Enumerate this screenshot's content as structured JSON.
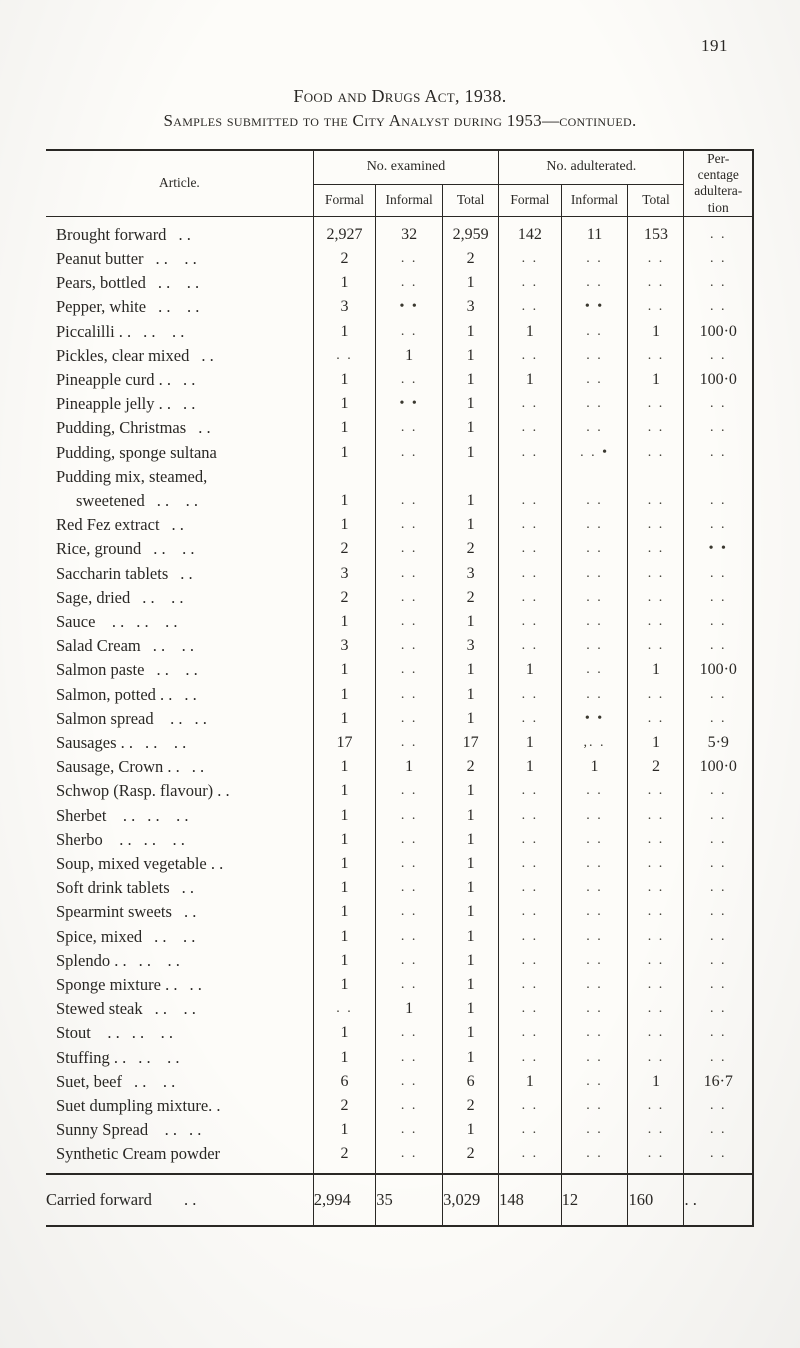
{
  "page_number": "191",
  "heading_main": "Food and Drugs Act, 1938.",
  "heading_sub": "Samples submitted to the City Analyst during 1953—continued.",
  "col_headers": {
    "article": "Article.",
    "examined": "No. examined",
    "adulterated": "No. adulterated.",
    "formal": "Formal",
    "informal": "Informal",
    "total": "Total",
    "pct": "Per-\ncentage\nadultera-\ntion"
  },
  "dot": ". .",
  "bullet": "• •",
  "asterdots": ". . •",
  "commadot": ",. .",
  "rows": [
    {
      "a": "Brought forward",
      "lead": ". .",
      "f": "2,927",
      "i": "32",
      "t": "2,959",
      "af": "142",
      "ai": "11",
      "at": "153",
      "p": ". ."
    },
    {
      "a": "Peanut butter",
      "lead": ". . . .",
      "f": "2",
      "i": ". .",
      "t": "2",
      "af": ". .",
      "ai": ". .",
      "at": ". .",
      "p": ". ."
    },
    {
      "a": "Pears, bottled",
      "lead": ". . . .",
      "f": "1",
      "i": ". .",
      "t": "1",
      "af": ". .",
      "ai": ". .",
      "at": ". .",
      "p": ". ."
    },
    {
      "a": "Pepper, white",
      "lead": ". . . .",
      "f": "3",
      "i": "• •",
      "t": "3",
      "af": ". .",
      "ai": "• •",
      "at": ". .",
      "p": ". ."
    },
    {
      "a": "Piccalilli . .",
      "lead": ". . . .",
      "f": "1",
      "i": ". .",
      "t": "1",
      "af": "1",
      "ai": ". .",
      "at": "1",
      "p": "100·0"
    },
    {
      "a": "Pickles, clear mixed",
      "lead": ". .",
      "f": ". .",
      "i": "1",
      "t": "1",
      "af": ". .",
      "ai": ". .",
      "at": ". .",
      "p": ". ."
    },
    {
      "a": "Pineapple curd . .",
      "lead": ". .",
      "f": "1",
      "i": ". .",
      "t": "1",
      "af": "1",
      "ai": ". .",
      "at": "1",
      "p": "100·0"
    },
    {
      "a": "Pineapple jelly . .",
      "lead": ". .",
      "f": "1",
      "i": "• •",
      "t": "1",
      "af": ". .",
      "ai": ". .",
      "at": ". .",
      "p": ". ."
    },
    {
      "a": "Pudding, Christmas",
      "lead": ". .",
      "f": "1",
      "i": ". .",
      "t": "1",
      "af": ". .",
      "ai": ". .",
      "at": ". .",
      "p": ". ."
    },
    {
      "a": "Pudding, sponge sultana",
      "lead": "",
      "f": "1",
      "i": ". .",
      "t": "1",
      "af": ". .",
      "ai": ". . •",
      "at": ". .",
      "p": ". ."
    },
    {
      "a": "Pudding mix, steamed,",
      "lead": "",
      "f": "",
      "i": "",
      "t": "",
      "af": "",
      "ai": "",
      "at": "",
      "p": ""
    },
    {
      "a": "sweetened",
      "lead": ". . . .",
      "f": "1",
      "i": ". .",
      "t": "1",
      "af": ". .",
      "ai": ". .",
      "at": ". .",
      "p": ". .",
      "indent": true
    },
    {
      "a": "Red Fez extract",
      "lead": ". .",
      "f": "1",
      "i": ". .",
      "t": "1",
      "af": ". .",
      "ai": ". .",
      "at": ". .",
      "p": ". ."
    },
    {
      "a": "Rice, ground",
      "lead": ". . . .",
      "f": "2",
      "i": ". .",
      "t": "2",
      "af": ". .",
      "ai": ". .",
      "at": ". .",
      "p": "• •"
    },
    {
      "a": "Saccharin tablets",
      "lead": ". .",
      "f": "3",
      "i": ". .",
      "t": "3",
      "af": ". .",
      "ai": ". .",
      "at": ". .",
      "p": ". ."
    },
    {
      "a": "Sage, dried",
      "lead": ". . . .",
      "f": "2",
      "i": ". .",
      "t": "2",
      "af": ". .",
      "ai": ". .",
      "at": ". .",
      "p": ". ."
    },
    {
      "a": "Sauce . .",
      "lead": ". . . .",
      "f": "1",
      "i": ". .",
      "t": "1",
      "af": ". .",
      "ai": ". .",
      "at": ". .",
      "p": ". ."
    },
    {
      "a": "Salad Cream",
      "lead": ". . . .",
      "f": "3",
      "i": ". .",
      "t": "3",
      "af": ". .",
      "ai": ". .",
      "at": ". .",
      "p": ". ."
    },
    {
      "a": "Salmon paste",
      "lead": ". . . .",
      "f": "1",
      "i": ". .",
      "t": "1",
      "af": "1",
      "ai": ". .",
      "at": "1",
      "p": "100·0"
    },
    {
      "a": "Salmon, potted . .",
      "lead": ". .",
      "f": "1",
      "i": ". .",
      "t": "1",
      "af": ". .",
      "ai": ". .",
      "at": ". .",
      "p": ". ."
    },
    {
      "a": "Salmon spread . .",
      "lead": ". .",
      "f": "1",
      "i": ". .",
      "t": "1",
      "af": ". .",
      "ai": "• •",
      "at": ". .",
      "p": ". ."
    },
    {
      "a": "Sausages . .",
      "lead": ". . . .",
      "f": "17",
      "i": ". .",
      "t": "17",
      "af": "1",
      "ai": ",. .",
      "at": "1",
      "p": "5·9"
    },
    {
      "a": "Sausage, Crown . .",
      "lead": ". .",
      "f": "1",
      "i": "1",
      "t": "2",
      "af": "1",
      "ai": "1",
      "at": "2",
      "p": "100·0"
    },
    {
      "a": "Schwop (Rasp. flavour) . .",
      "lead": "",
      "f": "1",
      "i": ". .",
      "t": "1",
      "af": ". .",
      "ai": ". .",
      "at": ". .",
      "p": ". ."
    },
    {
      "a": "Sherbet . .",
      "lead": ". . . .",
      "f": "1",
      "i": ". .",
      "t": "1",
      "af": ". .",
      "ai": ". .",
      "at": ". .",
      "p": ". ."
    },
    {
      "a": "Sherbo . .",
      "lead": ". . . .",
      "f": "1",
      "i": ". .",
      "t": "1",
      "af": ". .",
      "ai": ". .",
      "at": ". .",
      "p": ". ."
    },
    {
      "a": "Soup, mixed vegetable . .",
      "lead": "",
      "f": "1",
      "i": ". .",
      "t": "1",
      "af": ". .",
      "ai": ". .",
      "at": ". .",
      "p": ". ."
    },
    {
      "a": "Soft drink tablets",
      "lead": ". .",
      "f": "1",
      "i": ". .",
      "t": "1",
      "af": ". .",
      "ai": ". .",
      "at": ". .",
      "p": ". ."
    },
    {
      "a": "Spearmint sweets",
      "lead": ". .",
      "f": "1",
      "i": ". .",
      "t": "1",
      "af": ". .",
      "ai": ". .",
      "at": ". .",
      "p": ". ."
    },
    {
      "a": "Spice, mixed",
      "lead": ". . . .",
      "f": "1",
      "i": ". .",
      "t": "1",
      "af": ". .",
      "ai": ". .",
      "at": ". .",
      "p": ". ."
    },
    {
      "a": "Splendo . .",
      "lead": ". . . .",
      "f": "1",
      "i": ". .",
      "t": "1",
      "af": ". .",
      "ai": ". .",
      "at": ". .",
      "p": ". ."
    },
    {
      "a": "Sponge mixture . .",
      "lead": ". .",
      "f": "1",
      "i": ". .",
      "t": "1",
      "af": ". .",
      "ai": ". .",
      "at": ". .",
      "p": ". ."
    },
    {
      "a": "Stewed steak",
      "lead": ". . . .",
      "f": ". .",
      "i": "1",
      "t": "1",
      "af": ". .",
      "ai": ". .",
      "at": ". .",
      "p": ". ."
    },
    {
      "a": "Stout . .",
      "lead": ". . . .",
      "f": "1",
      "i": ". .",
      "t": "1",
      "af": ". .",
      "ai": ". .",
      "at": ". .",
      "p": ". ."
    },
    {
      "a": "Stuffing . .",
      "lead": ". . . .",
      "f": "1",
      "i": ". .",
      "t": "1",
      "af": ". .",
      "ai": ". .",
      "at": ". .",
      "p": ". ."
    },
    {
      "a": "Suet, beef",
      "lead": ". . . .",
      "f": "6",
      "i": ". .",
      "t": "6",
      "af": "1",
      "ai": ". .",
      "at": "1",
      "p": "16·7"
    },
    {
      "a": "Suet dumpling mixture. .",
      "lead": "",
      "f": "2",
      "i": ". .",
      "t": "2",
      "af": ". .",
      "ai": ". .",
      "at": ". .",
      "p": ". ."
    },
    {
      "a": "Sunny Spread . .",
      "lead": ". .",
      "f": "1",
      "i": ". .",
      "t": "1",
      "af": ". .",
      "ai": ". .",
      "at": ". .",
      "p": ". ."
    },
    {
      "a": "Synthetic Cream powder",
      "lead": "",
      "f": "2",
      "i": ". .",
      "t": "2",
      "af": ". .",
      "ai": ". .",
      "at": ". .",
      "p": ". ."
    }
  ],
  "footer": {
    "label": "Carried forward",
    "lead": ". .",
    "f": "2,994",
    "i": "35",
    "t": "3,029",
    "af": "148",
    "ai": "12",
    "at": "160",
    "p": ". ."
  }
}
